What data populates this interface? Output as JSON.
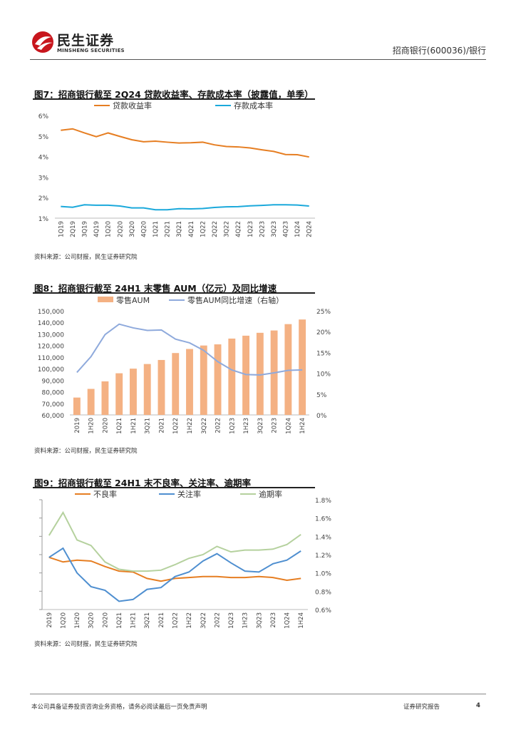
{
  "header": {
    "logo_cn": "民生证券",
    "logo_en": "MINSHENG SECURITIES",
    "right_text": "招商银行(600036)/银行"
  },
  "figures": [
    {
      "title": "图7：招商银行截至 2Q24 贷款收益率、存款成本率（披露值，单季）",
      "source": "资料来源：公司财报，民生证券研究院",
      "chart_data": {
        "type": "line",
        "categories": [
          "1Q19",
          "2Q19",
          "3Q19",
          "4Q19",
          "1Q20",
          "2Q20",
          "3Q20",
          "4Q20",
          "1Q21",
          "2Q21",
          "3Q21",
          "4Q21",
          "1Q22",
          "2Q22",
          "3Q22",
          "4Q22",
          "1Q23",
          "2Q23",
          "3Q23",
          "4Q23",
          "1Q24",
          "2Q24"
        ],
        "series": [
          {
            "name": "贷款收益率",
            "color": "#E67E22",
            "values": [
              5.28,
              5.35,
              5.15,
              4.97,
              5.15,
              4.98,
              4.82,
              4.72,
              4.75,
              4.7,
              4.66,
              4.67,
              4.7,
              4.57,
              4.49,
              4.47,
              4.42,
              4.33,
              4.25,
              4.1,
              4.09,
              3.98
            ]
          },
          {
            "name": "存款成本率",
            "color": "#1BA9DB",
            "values": [
              1.57,
              1.53,
              1.65,
              1.63,
              1.63,
              1.59,
              1.5,
              1.5,
              1.41,
              1.41,
              1.46,
              1.45,
              1.47,
              1.52,
              1.55,
              1.56,
              1.6,
              1.62,
              1.65,
              1.65,
              1.64,
              1.59
            ]
          }
        ],
        "yticks": [
          "6%",
          "5%",
          "4%",
          "3%",
          "2%",
          "1%"
        ],
        "ylim": [
          1,
          6
        ]
      }
    },
    {
      "title": "图8：招商银行截至 24H1 末零售 AUM（亿元）及同比增速",
      "source": "资料来源：公司财报，民生证券研究院",
      "chart_data": {
        "type": "bar",
        "categories": [
          "2019",
          "1H20",
          "2020",
          "1Q21",
          "1H21",
          "3Q21",
          "2021",
          "1Q22",
          "1H22",
          "3Q22",
          "2022",
          "1Q23",
          "1H23",
          "3Q23",
          "2023",
          "1Q24",
          "1H24"
        ],
        "series": [
          {
            "name": "零售AUM",
            "color": "#F4B183",
            "values": [
              75000,
              82500,
              89000,
              96000,
              100000,
              104000,
              107500,
              113500,
              117000,
              120000,
              121000,
              126000,
              128500,
              131000,
              133000,
              138500,
              142500
            ]
          },
          {
            "name": "零售AUM同比增速（右轴）",
            "color": "#8FAADC",
            "axis": "right",
            "values": [
              10.2,
              14.0,
              19.3,
              21.8,
              20.9,
              20.3,
              20.4,
              18.2,
              17.3,
              15.5,
              12.8,
              10.8,
              9.7,
              9.6,
              10.1,
              10.7,
              10.8
            ]
          }
        ],
        "yticks_left": [
          "150,000",
          "140,000",
          "130,000",
          "120,000",
          "110,000",
          "100,000",
          "90,000",
          "80,000",
          "70,000",
          "60,000"
        ],
        "yticks_right": [
          "25%",
          "20%",
          "15%",
          "10%",
          "5%",
          "0%"
        ],
        "ylim_left": [
          60000,
          150000
        ],
        "ylim_right": [
          0,
          25
        ]
      }
    },
    {
      "title": "图9：招商银行截至 24H1 末不良率、关注率、逾期率",
      "source": "资料来源：公司财报，民生证券研究院",
      "chart_data": {
        "type": "line",
        "categories": [
          "2019",
          "1Q20",
          "1H20",
          "3Q20",
          "2020",
          "1Q21",
          "1H21",
          "3Q21",
          "2021",
          "1Q22",
          "1H22",
          "3Q22",
          "2022",
          "1Q23",
          "1H23",
          "3Q23",
          "2023",
          "1Q24",
          "1H24"
        ],
        "series": [
          {
            "name": "不良率",
            "color": "#E67E22",
            "values": [
              1.17,
              1.12,
              1.14,
              1.13,
              1.07,
              1.02,
              1.01,
              0.94,
              0.91,
              0.94,
              0.95,
              0.96,
              0.96,
              0.95,
              0.95,
              0.96,
              0.95,
              0.92,
              0.94
            ]
          },
          {
            "name": "关注率",
            "color": "#4F8FD0",
            "values": [
              1.17,
              1.27,
              1.0,
              0.85,
              0.81,
              0.69,
              0.71,
              0.82,
              0.84,
              0.96,
              1.01,
              1.13,
              1.21,
              1.11,
              1.02,
              1.01,
              1.1,
              1.14,
              1.24
            ]
          },
          {
            "name": "逾期率",
            "color": "#B5D19E",
            "values": [
              1.41,
              1.66,
              1.36,
              1.3,
              1.12,
              1.04,
              1.02,
              1.02,
              1.03,
              1.09,
              1.16,
              1.2,
              1.29,
              1.23,
              1.25,
              1.25,
              1.26,
              1.31,
              1.42
            ]
          }
        ],
        "yticks_right": [
          "1.8%",
          "1.6%",
          "1.4%",
          "1.2%",
          "1.0%",
          "0.8%",
          "0.6%"
        ],
        "ylim_right": [
          0.6,
          1.8
        ]
      }
    }
  ],
  "footer": {
    "disclaimer": "本公司具备证券投资咨询业务资格，请务必阅读最后一页免责声明",
    "report_type": "证券研究报告",
    "page_number": "4"
  }
}
